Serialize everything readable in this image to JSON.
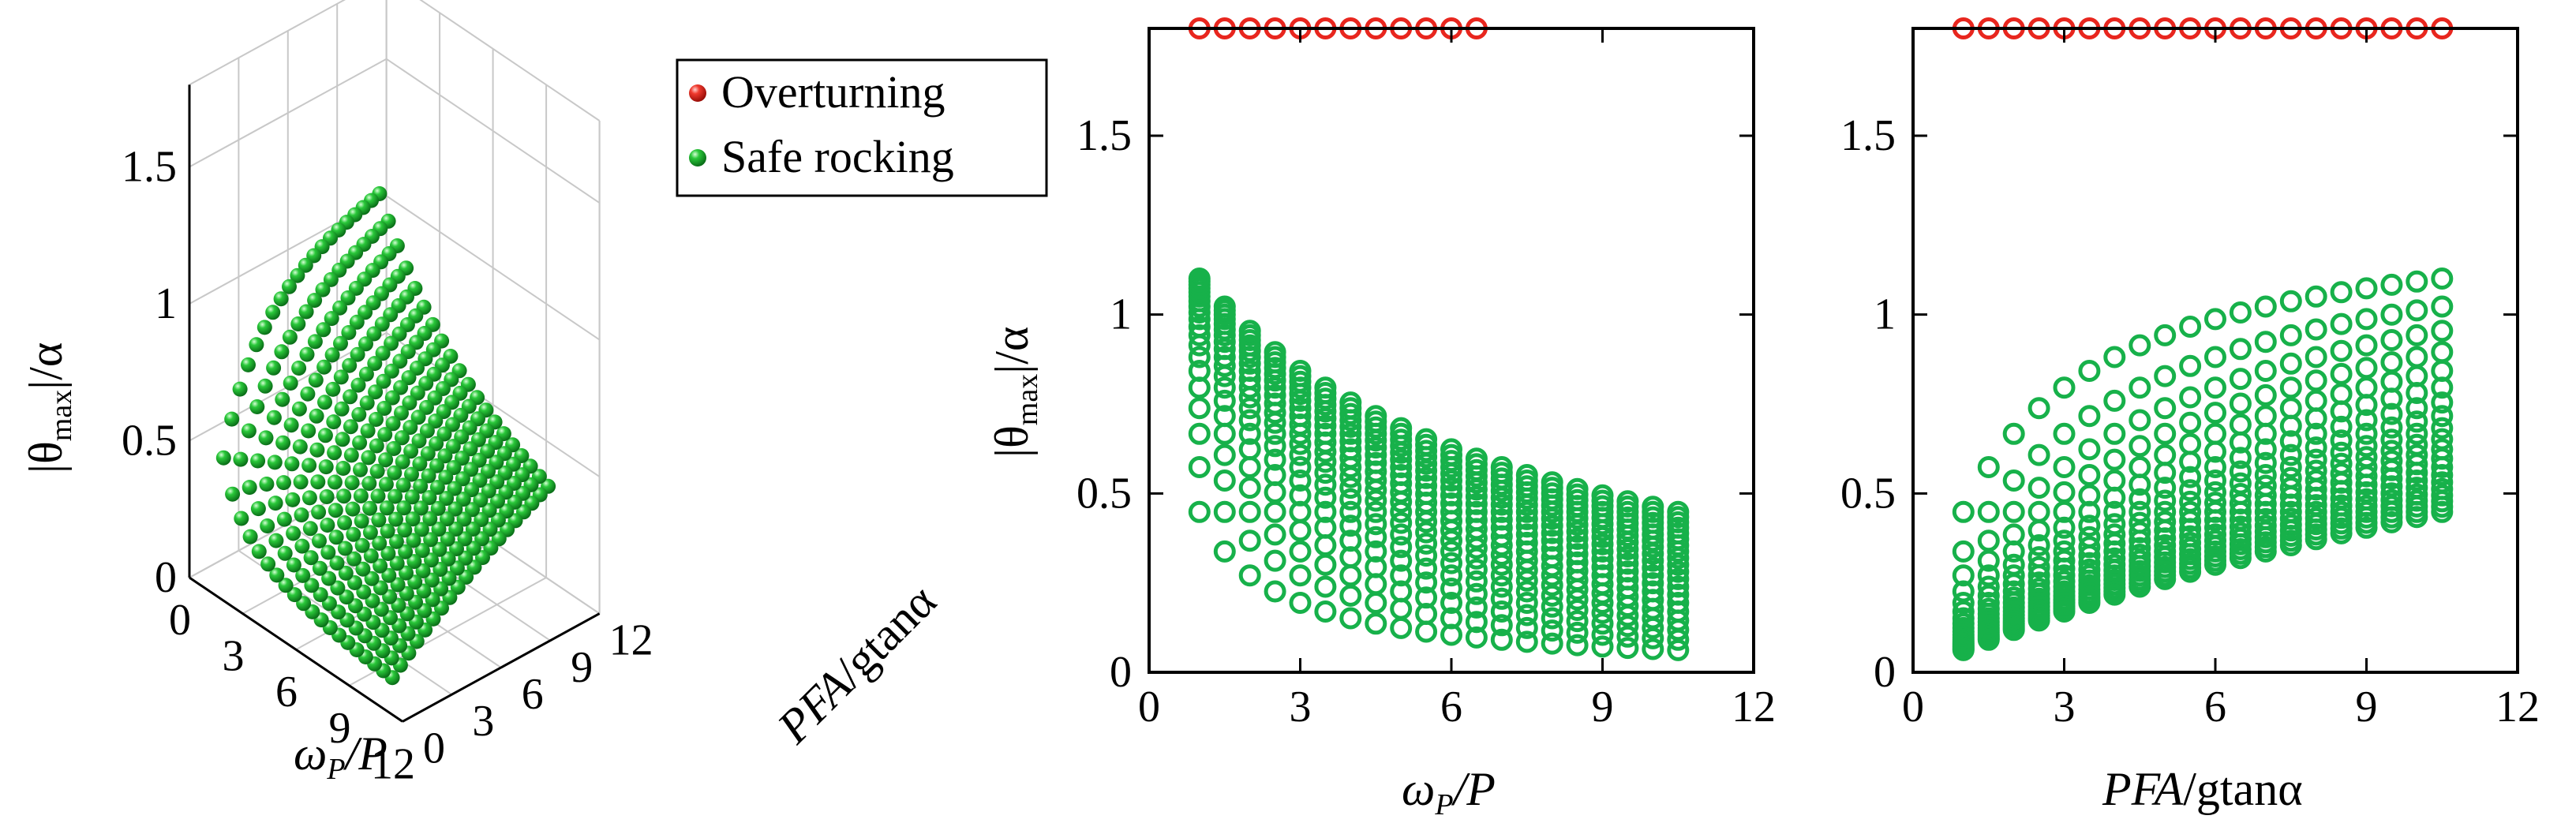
{
  "colors": {
    "overturning": "#e8261e",
    "safe": "#17b14a",
    "grid": "#c8c8c8",
    "axis": "#000000"
  },
  "legend": {
    "overturning": "Overturning",
    "safe": "Safe rocking"
  },
  "chart_data": [
    {
      "panel": "3d",
      "type": "scatter",
      "xlabel": "ωP/P",
      "ylabel": "PFA/gtanα",
      "zlabel": "|θmax|/α",
      "xlim": [
        0,
        12
      ],
      "ylim": [
        0,
        12
      ],
      "zlim": [
        0,
        1.8
      ],
      "xticks": [
        "0",
        "3",
        "6",
        "9",
        "12"
      ],
      "yticks": [
        "0",
        "3",
        "6",
        "9",
        "12"
      ],
      "zticks": [
        "0",
        "0.5",
        "1",
        "1.5"
      ],
      "grid_step": 0.5,
      "range_min": 1,
      "range_max": 10.5,
      "overturn_value": 1.8,
      "series": [
        {
          "name": "Overturning",
          "marker": "filled-sphere",
          "rule": "overturn where ωP/P < ~6.5 + 0.08·PFA/gtanα at low ratio"
        },
        {
          "name": "Safe rocking",
          "marker": "filled-sphere",
          "rule": "|θmax|/α rises with PFA/gtanα and falls with ωP/P"
        }
      ]
    },
    {
      "panel": "2d-omega",
      "type": "scatter",
      "xlabel": "ωP/P",
      "ylabel": "|θmax|/α",
      "xlim": [
        0,
        12
      ],
      "ylim": [
        0,
        1.8
      ],
      "xticks": [
        "0",
        "3",
        "6",
        "9",
        "12"
      ],
      "yticks": [
        "0",
        "0.5",
        "1",
        "1.5"
      ],
      "series": [
        {
          "name": "Overturning",
          "x": [
            1,
            1.5,
            2,
            2.5,
            3,
            3.5,
            4,
            4.5,
            5,
            5.5,
            6,
            6.5
          ],
          "y": 1.8
        },
        {
          "name": "Safe rocking",
          "source": "grid of ωP/P × PFA/gtanα in [1, 10.5]"
        }
      ]
    },
    {
      "panel": "2d-pfa",
      "type": "scatter",
      "xlabel": "PFA/gtanα",
      "ylabel": "|θmax|/α",
      "xlim": [
        0,
        12
      ],
      "ylim": [
        0,
        1.8
      ],
      "xticks": [
        "0",
        "3",
        "6",
        "9",
        "12"
      ],
      "yticks": [
        "0",
        "0.5",
        "1",
        "1.5"
      ],
      "series": [
        {
          "name": "Overturning",
          "x": [
            1,
            1.5,
            2,
            2.5,
            3,
            3.5,
            4,
            4.5,
            5,
            5.5,
            6,
            6.5,
            7,
            7.5,
            8,
            8.5,
            9,
            9.5,
            10,
            10.5
          ],
          "y": 1.8
        },
        {
          "name": "Safe rocking",
          "source": "grid of ωP/P × PFA/gtanα in [1, 10.5]"
        }
      ]
    }
  ],
  "labels": {
    "p1_x_main": "ω",
    "p1_x_sub": "P",
    "p1_x_tail": "/P",
    "p1_y_a": "PFA",
    "p1_y_b": "/g",
    "p1_y_c": "tanα",
    "p1_z_a": "|θ",
    "p1_z_sub": "max",
    "p1_z_b": "|/α",
    "p2_x_main": "ω",
    "p2_x_sub": "P",
    "p2_x_tail": "/P",
    "p2_y_a": "|θ",
    "p2_y_sub": "max",
    "p2_y_b": "|/α",
    "p3_x_a": "PFA",
    "p3_x_b": "/g",
    "p3_x_c": "tanα"
  }
}
